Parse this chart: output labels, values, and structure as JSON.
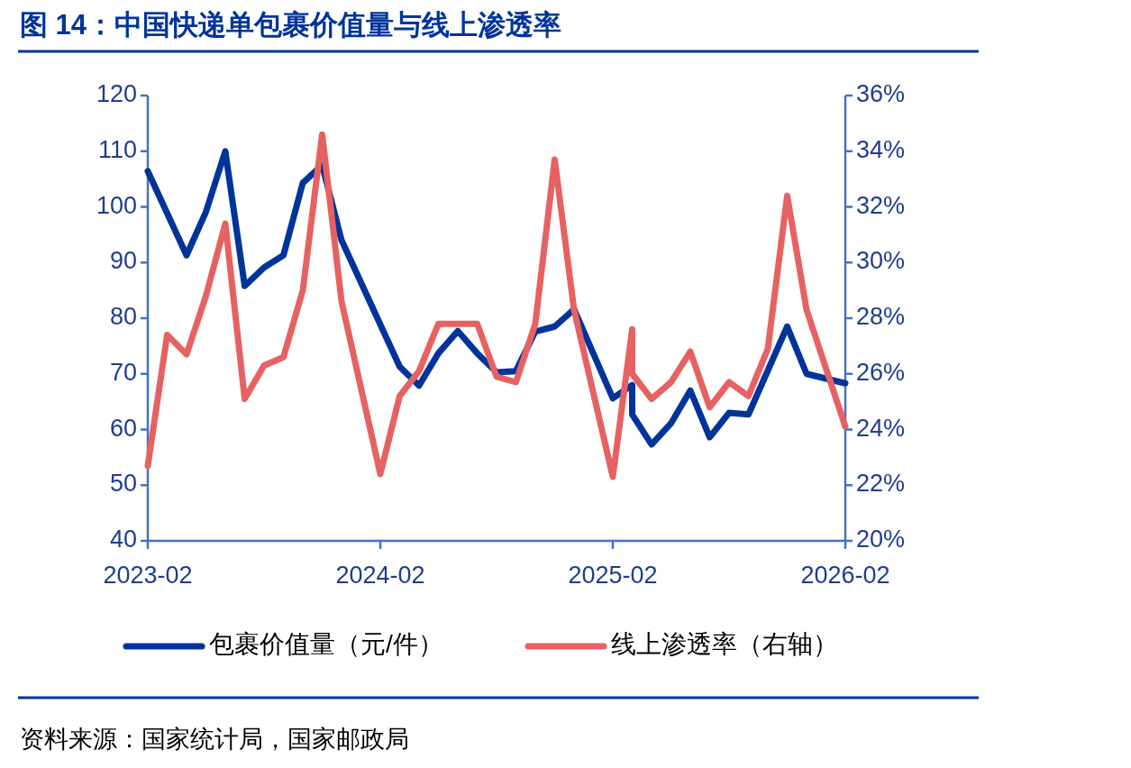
{
  "chart_data": {
    "type": "line",
    "title": "图 14：中国快递单包裹价值量与线上渗透率",
    "xlim": [
      "2023-02",
      "2026-02"
    ],
    "xticks": [
      "2023-02",
      "2024-02",
      "2025-02",
      "2026-02"
    ],
    "ylim": [
      40,
      120
    ],
    "yticks": [
      40,
      50,
      60,
      70,
      80,
      90,
      100,
      110,
      120
    ],
    "y2lim": [
      20,
      36
    ],
    "y2ticks": [
      {
        "value": 20,
        "label": "20%"
      },
      {
        "value": 22,
        "label": "22%"
      },
      {
        "value": 24,
        "label": "24%"
      },
      {
        "value": 26,
        "label": "26%"
      },
      {
        "value": 28,
        "label": "28%"
      },
      {
        "value": 30,
        "label": "30%"
      },
      {
        "value": 32,
        "label": "32%"
      },
      {
        "value": 34,
        "label": "34%"
      },
      {
        "value": 36,
        "label": "36%"
      }
    ],
    "legend": "bottom",
    "line_style": "solid",
    "annotations": [
      "资料来源：国家统计局，国家邮政局"
    ],
    "series": [
      {
        "name": "包裹价值量（元/件）",
        "color": "#00349a",
        "x": [
          "2023-02",
          "2023-04",
          "2023-05",
          "2023-06",
          "2023-07",
          "2023-08",
          "2023-09",
          "2023-10",
          "2023-11",
          "2023-12",
          "2024-03",
          "2024-04",
          "2024-05",
          "2024-06",
          "2024-07",
          "2024-08",
          "2024-09",
          "2024-10",
          "2024-11",
          "2024-12",
          "2025-02",
          "2025-03",
          "2025-03",
          "2025-04",
          "2025-05",
          "2025-06",
          "2025-07",
          "2025-08",
          "2025-09",
          "2025-11",
          "2025-12",
          "2026-02"
        ],
        "values": [
          106.4,
          91.3,
          99.1,
          110,
          85.8,
          89.1,
          91.3,
          104.3,
          107.5,
          94,
          71.3,
          67.9,
          73.7,
          77.7,
          73.7,
          70.3,
          70.5,
          77.6,
          78.5,
          81.6,
          65.6,
          68,
          62.7,
          57.3,
          61.1,
          67,
          58.6,
          63,
          62.7,
          78.5,
          70,
          68.3
        ]
      },
      {
        "name": "线上渗透率（右轴）",
        "color": "#e66262",
        "axis": "y2",
        "x": [
          "2023-02",
          "2023-03",
          "2023-04",
          "2023-05",
          "2023-06",
          "2023-07",
          "2023-08",
          "2023-09",
          "2023-10",
          "2023-11",
          "2023-12",
          "2024-02",
          "2024-03",
          "2024-04",
          "2024-05",
          "2024-06",
          "2024-07",
          "2024-08",
          "2024-09",
          "2024-10",
          "2024-11",
          "2024-12",
          "2025-02",
          "2025-03",
          "2025-03",
          "2025-04",
          "2025-05",
          "2025-06",
          "2025-07",
          "2025-08",
          "2025-09",
          "2025-10",
          "2025-11",
          "2025-12",
          "2026-02"
        ],
        "values": [
          22.7,
          27.4,
          26.7,
          28.8,
          31.4,
          25.1,
          26.3,
          26.6,
          29,
          34.6,
          28.6,
          22.4,
          25.2,
          26.1,
          27.8,
          27.8,
          27.8,
          25.9,
          25.7,
          27.8,
          33.7,
          28.3,
          22.3,
          27.6,
          26,
          25.1,
          25.7,
          26.8,
          24.8,
          25.7,
          25.2,
          26.9,
          32.4,
          28.3,
          24.1
        ]
      }
    ]
  }
}
